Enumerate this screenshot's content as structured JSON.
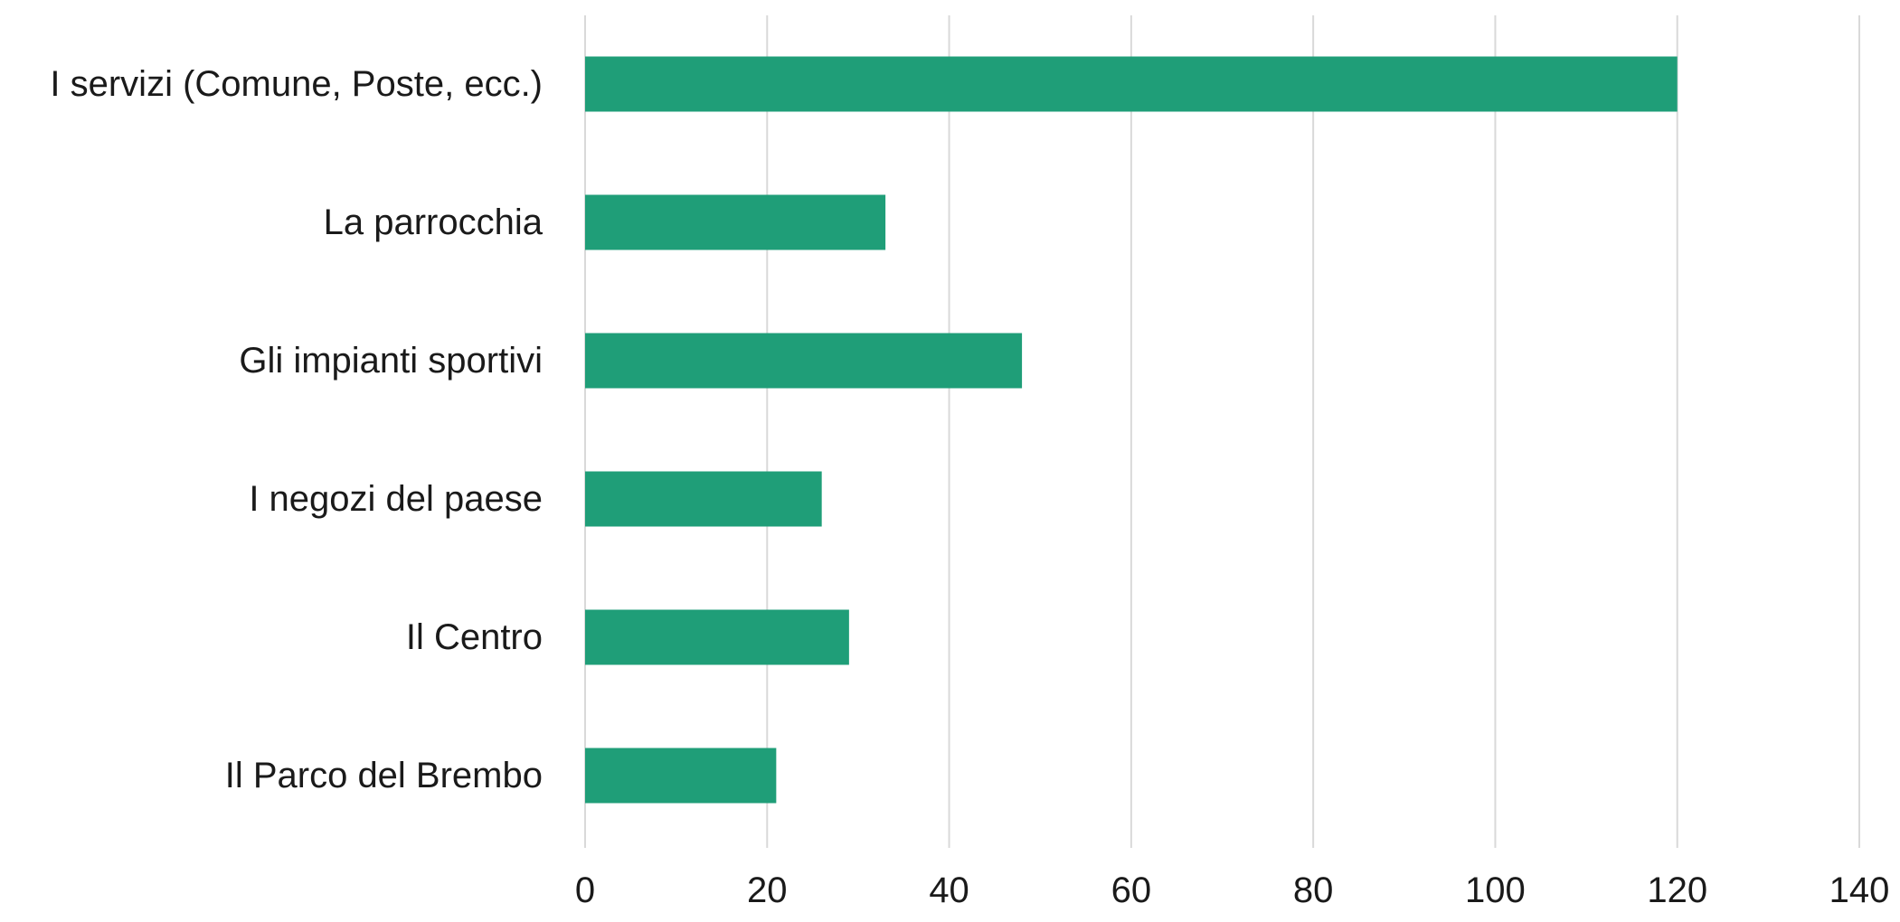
{
  "chart_data": {
    "type": "bar",
    "orientation": "horizontal",
    "categories": [
      "I servizi (Comune, Poste, ecc.)",
      "La parrocchia",
      "Gli impianti sportivi",
      "I negozi del paese",
      "Il Centro",
      "Il Parco del Brembo"
    ],
    "values": [
      120,
      33,
      48,
      26,
      29,
      21
    ],
    "xlim": [
      0,
      140
    ],
    "x_ticks": [
      0,
      20,
      40,
      60,
      80,
      100,
      120,
      140
    ],
    "title": "",
    "xlabel": "",
    "ylabel": "",
    "grid": true,
    "legend": "none",
    "bar_color": "#1f9e78",
    "grid_color": "#d9d9d9"
  }
}
